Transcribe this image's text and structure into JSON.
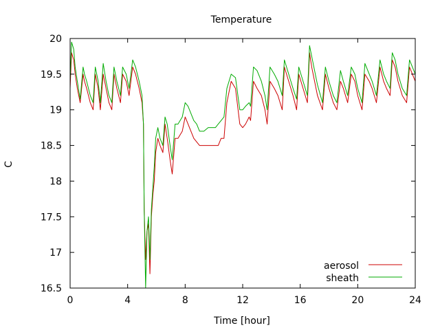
{
  "chart_data": {
    "type": "line",
    "title": "Temperature",
    "xlabel": "Time [hour]",
    "ylabel": "C",
    "xlim": [
      0,
      24
    ],
    "ylim": [
      16.5,
      20
    ],
    "x_ticks": [
      0,
      4,
      8,
      12,
      16,
      20,
      24
    ],
    "y_ticks": [
      16.5,
      17,
      17.5,
      18,
      18.5,
      19,
      19.5,
      20
    ],
    "grid": false,
    "legend_position": "bottom-right",
    "series": [
      {
        "name": "aerosol",
        "color": "#cc0000",
        "x": [
          0,
          0.1,
          0.25,
          0.35,
          0.5,
          0.7,
          0.9,
          1.0,
          1.15,
          1.4,
          1.6,
          1.75,
          1.95,
          2.1,
          2.3,
          2.5,
          2.7,
          2.9,
          3.05,
          3.25,
          3.5,
          3.65,
          3.9,
          4.1,
          4.35,
          4.55,
          4.8,
          5.0,
          5.1,
          5.15,
          5.25,
          5.35,
          5.45,
          5.55,
          5.65,
          5.75,
          5.85,
          5.95,
          6.1,
          6.25,
          6.45,
          6.6,
          6.75,
          6.95,
          7.1,
          7.3,
          7.5,
          7.8,
          8.0,
          8.2,
          8.4,
          8.6,
          8.8,
          9.0,
          9.3,
          9.6,
          9.9,
          10.1,
          10.3,
          10.5,
          10.7,
          10.9,
          11.2,
          11.5,
          11.8,
          12.0,
          12.2,
          12.45,
          12.55,
          12.75,
          13.0,
          13.3,
          13.55,
          13.7,
          13.9,
          14.2,
          14.45,
          14.75,
          14.9,
          15.2,
          15.5,
          15.75,
          15.9,
          16.2,
          16.5,
          16.65,
          16.8,
          17.0,
          17.2,
          17.55,
          17.75,
          18.0,
          18.3,
          18.55,
          18.8,
          19.0,
          19.3,
          19.55,
          19.8,
          20.0,
          20.3,
          20.5,
          20.8,
          21.0,
          21.3,
          21.55,
          21.8,
          22.0,
          22.25,
          22.4,
          22.6,
          22.8,
          23.1,
          23.4,
          23.6,
          23.8,
          24.0
        ],
        "y": [
          19.3,
          19.8,
          19.7,
          19.5,
          19.3,
          19.1,
          19.5,
          19.4,
          19.3,
          19.1,
          19.0,
          19.5,
          19.3,
          19.0,
          19.5,
          19.3,
          19.1,
          19.0,
          19.5,
          19.3,
          19.1,
          19.5,
          19.4,
          19.2,
          19.6,
          19.5,
          19.3,
          19.1,
          18.8,
          17.6,
          16.9,
          17.3,
          17.4,
          16.7,
          17.5,
          17.8,
          18.0,
          18.4,
          18.6,
          18.5,
          18.4,
          18.8,
          18.6,
          18.3,
          18.1,
          18.6,
          18.6,
          18.7,
          18.9,
          18.8,
          18.7,
          18.6,
          18.55,
          18.5,
          18.5,
          18.5,
          18.5,
          18.5,
          18.5,
          18.6,
          18.6,
          19.1,
          19.4,
          19.3,
          18.8,
          18.75,
          18.8,
          18.9,
          18.85,
          19.4,
          19.3,
          19.2,
          19.0,
          18.8,
          19.4,
          19.3,
          19.2,
          19.0,
          19.6,
          19.4,
          19.2,
          19.0,
          19.5,
          19.3,
          19.1,
          19.8,
          19.6,
          19.4,
          19.2,
          19.0,
          19.5,
          19.3,
          19.1,
          19.0,
          19.4,
          19.3,
          19.1,
          19.5,
          19.4,
          19.2,
          19.0,
          19.5,
          19.4,
          19.3,
          19.1,
          19.6,
          19.4,
          19.3,
          19.2,
          19.7,
          19.6,
          19.4,
          19.2,
          19.1,
          19.6,
          19.5,
          19.4
        ]
      },
      {
        "name": "sheath",
        "color": "#00aa00",
        "x": [
          0,
          0.1,
          0.25,
          0.35,
          0.5,
          0.7,
          0.9,
          1.0,
          1.15,
          1.4,
          1.6,
          1.75,
          1.95,
          2.1,
          2.3,
          2.5,
          2.7,
          2.9,
          3.05,
          3.25,
          3.5,
          3.65,
          3.9,
          4.1,
          4.35,
          4.55,
          4.8,
          5.0,
          5.1,
          5.15,
          5.25,
          5.35,
          5.45,
          5.55,
          5.65,
          5.75,
          5.85,
          5.95,
          6.1,
          6.25,
          6.45,
          6.6,
          6.75,
          6.95,
          7.1,
          7.3,
          7.5,
          7.8,
          8.0,
          8.2,
          8.4,
          8.6,
          8.8,
          9.0,
          9.3,
          9.6,
          9.9,
          10.1,
          10.3,
          10.5,
          10.7,
          10.9,
          11.2,
          11.5,
          11.8,
          12.0,
          12.2,
          12.45,
          12.55,
          12.75,
          13.0,
          13.3,
          13.55,
          13.7,
          13.9,
          14.2,
          14.45,
          14.75,
          14.9,
          15.2,
          15.5,
          15.75,
          15.9,
          16.2,
          16.5,
          16.65,
          16.8,
          17.0,
          17.2,
          17.55,
          17.75,
          18.0,
          18.3,
          18.55,
          18.8,
          19.0,
          19.3,
          19.55,
          19.8,
          20.0,
          20.3,
          20.5,
          20.8,
          21.0,
          21.3,
          21.55,
          21.8,
          22.0,
          22.25,
          22.4,
          22.6,
          22.8,
          23.1,
          23.4,
          23.6,
          23.8,
          24.0
        ],
        "y": [
          19.4,
          19.95,
          19.85,
          19.6,
          19.4,
          19.15,
          19.6,
          19.5,
          19.4,
          19.2,
          19.1,
          19.6,
          19.4,
          19.1,
          19.65,
          19.4,
          19.2,
          19.1,
          19.6,
          19.4,
          19.2,
          19.6,
          19.5,
          19.3,
          19.7,
          19.6,
          19.4,
          19.2,
          18.8,
          17.6,
          16.5,
          17.3,
          17.5,
          16.9,
          17.6,
          17.9,
          18.2,
          18.6,
          18.75,
          18.6,
          18.5,
          18.9,
          18.8,
          18.5,
          18.3,
          18.8,
          18.8,
          18.9,
          19.1,
          19.05,
          18.95,
          18.85,
          18.8,
          18.7,
          18.7,
          18.75,
          18.75,
          18.75,
          18.8,
          18.85,
          18.9,
          19.3,
          19.5,
          19.45,
          19.0,
          19.0,
          19.05,
          19.1,
          19.05,
          19.6,
          19.55,
          19.4,
          19.2,
          19.0,
          19.6,
          19.5,
          19.4,
          19.2,
          19.7,
          19.5,
          19.3,
          19.15,
          19.6,
          19.4,
          19.2,
          19.9,
          19.75,
          19.55,
          19.35,
          19.1,
          19.6,
          19.4,
          19.2,
          19.1,
          19.55,
          19.4,
          19.2,
          19.6,
          19.5,
          19.3,
          19.1,
          19.65,
          19.5,
          19.4,
          19.2,
          19.7,
          19.5,
          19.4,
          19.3,
          19.8,
          19.7,
          19.5,
          19.3,
          19.2,
          19.7,
          19.6,
          19.5
        ]
      }
    ]
  }
}
